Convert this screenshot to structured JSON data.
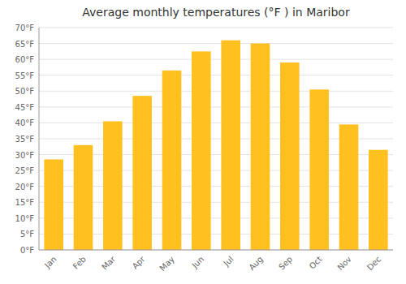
{
  "chart_data": {
    "type": "bar",
    "title": "Average monthly temperatures (°F ) in Maribor",
    "categories": [
      "Jan",
      "Feb",
      "Mar",
      "Apr",
      "May",
      "Jun",
      "Jul",
      "Aug",
      "Sep",
      "Oct",
      "Nov",
      "Dec"
    ],
    "values": [
      28.5,
      33.0,
      40.5,
      48.5,
      56.5,
      62.5,
      66.0,
      65.0,
      59.0,
      50.5,
      39.5,
      31.5
    ],
    "color": "#FFC020",
    "ylim": [
      0,
      70
    ],
    "yticks": [
      {
        "value": 0,
        "label": "0°F"
      },
      {
        "value": 5,
        "label": "5°F"
      },
      {
        "value": 10,
        "label": "10°F"
      },
      {
        "value": 15,
        "label": "15°F"
      },
      {
        "value": 20,
        "label": "20°F"
      },
      {
        "value": 25,
        "label": "25°F"
      },
      {
        "value": 30,
        "label": "30°F"
      },
      {
        "value": 35,
        "label": "35°F"
      },
      {
        "value": 40,
        "label": "40°F"
      },
      {
        "value": 45,
        "label": "45°F"
      },
      {
        "value": 50,
        "label": "50°F"
      },
      {
        "value": 55,
        "label": "55°F"
      },
      {
        "value": 60,
        "label": "60°F"
      },
      {
        "value": 65,
        "label": "65°F"
      },
      {
        "value": 70,
        "label": "70°F"
      }
    ],
    "grid": true
  }
}
